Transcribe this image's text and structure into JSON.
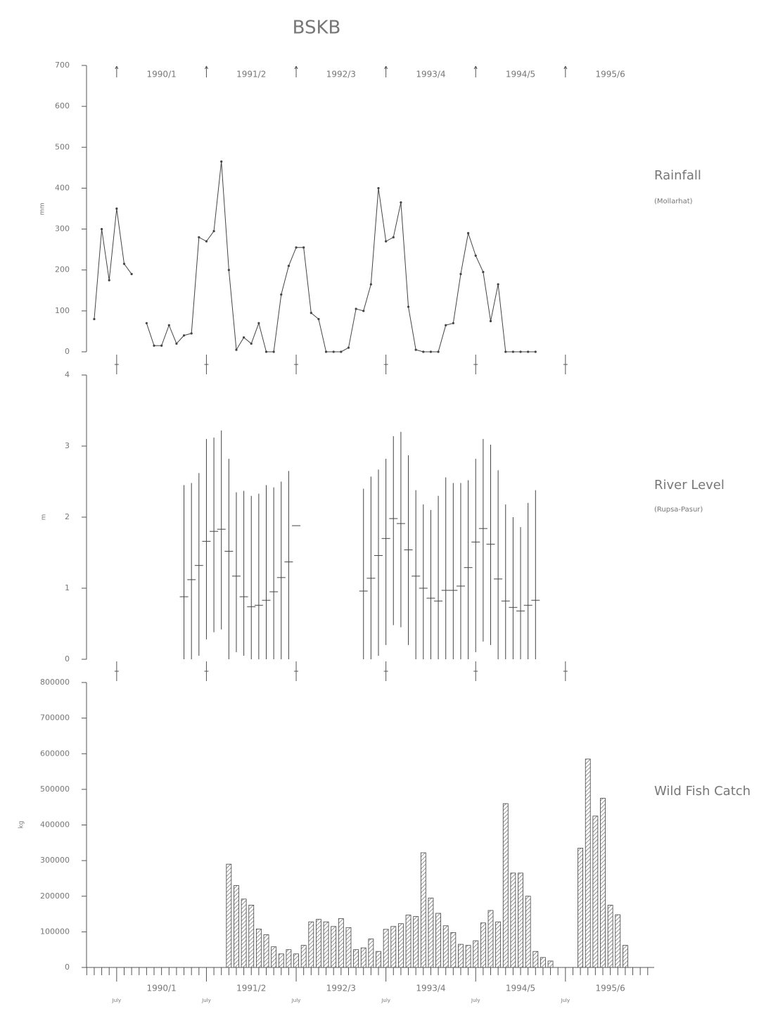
{
  "title": "BSKB",
  "chart_data": [
    {
      "type": "line",
      "label": "Rainfall",
      "sublabel": "(Mollarhat)",
      "ylabel": "mm",
      "season_labels": [
        "1990/1",
        "1991/2",
        "1992/3",
        "1993/4",
        "1994/5",
        "1995/6"
      ],
      "ylim": [
        0,
        700
      ],
      "yticks": [
        0,
        100,
        200,
        300,
        400,
        500,
        600,
        700
      ],
      "color": "#444444",
      "values": [
        null,
        80,
        300,
        175,
        350,
        215,
        190,
        null,
        70,
        15,
        15,
        65,
        20,
        40,
        45,
        280,
        270,
        295,
        465,
        200,
        5,
        35,
        20,
        70,
        0,
        0,
        140,
        210,
        255,
        255,
        95,
        80,
        0,
        0,
        0,
        10,
        105,
        100,
        165,
        400,
        270,
        280,
        365,
        110,
        5,
        0,
        0,
        0,
        65,
        70,
        190,
        290,
        235,
        195,
        75,
        165,
        0,
        0,
        0,
        0,
        0,
        null,
        null,
        null,
        null,
        null,
        null,
        null,
        null,
        null,
        null,
        null,
        null,
        null,
        null,
        null
      ]
    },
    {
      "type": "range",
      "label": "River Level",
      "sublabel": "(Rupsa-Pasur)",
      "ylabel": "m",
      "ylim": [
        0,
        4
      ],
      "yticks": [
        0,
        1,
        2,
        3,
        4
      ],
      "color": "#444444",
      "values": [
        null,
        null,
        null,
        null,
        null,
        null,
        null,
        null,
        null,
        null,
        null,
        null,
        null,
        0.88,
        1.12,
        1.32,
        1.66,
        1.8,
        1.83,
        1.52,
        1.17,
        0.88,
        0.74,
        0.76,
        0.83,
        0.95,
        1.15,
        1.37,
        1.88,
        null,
        null,
        null,
        null,
        null,
        null,
        null,
        null,
        0.96,
        1.14,
        1.46,
        1.7,
        1.98,
        1.91,
        1.54,
        1.17,
        1.0,
        0.86,
        0.82,
        0.97,
        0.97,
        1.03,
        1.29,
        1.65,
        1.84,
        1.62,
        1.13,
        0.82,
        0.73,
        0.68,
        0.76,
        0.83,
        null,
        null,
        null,
        null,
        null,
        null,
        null,
        null,
        null,
        null,
        null,
        null,
        null,
        null,
        null
      ],
      "low": [
        null,
        null,
        null,
        null,
        null,
        null,
        null,
        null,
        null,
        null,
        null,
        null,
        null,
        0,
        0,
        0.05,
        0.28,
        0.38,
        0.42,
        0,
        0.1,
        0.05,
        0,
        0,
        0,
        0,
        0,
        0,
        null,
        null,
        null,
        null,
        null,
        null,
        null,
        null,
        null,
        0,
        0,
        0.05,
        0.2,
        0.48,
        0.45,
        0.2,
        0,
        0,
        0,
        0,
        0,
        0,
        0,
        0,
        0.1,
        0.25,
        0.2,
        0,
        0,
        0,
        0,
        0,
        0,
        null,
        null,
        null,
        null,
        null,
        null,
        null,
        null,
        null,
        null,
        null,
        null,
        null,
        null,
        null
      ],
      "high": [
        null,
        null,
        null,
        null,
        null,
        null,
        null,
        null,
        null,
        null,
        null,
        null,
        null,
        2.45,
        2.48,
        2.62,
        3.1,
        3.12,
        3.22,
        2.82,
        2.35,
        2.37,
        2.3,
        2.33,
        2.45,
        2.42,
        2.5,
        2.65,
        null,
        null,
        null,
        null,
        null,
        null,
        null,
        null,
        null,
        2.4,
        2.57,
        2.67,
        2.82,
        3.14,
        3.2,
        2.87,
        2.38,
        2.18,
        2.1,
        2.3,
        2.56,
        2.48,
        2.48,
        2.52,
        2.82,
        3.1,
        3.02,
        2.66,
        2.18,
        2.0,
        1.86,
        2.2,
        2.38,
        null,
        null,
        null,
        null,
        null,
        null,
        null,
        null,
        null,
        null,
        null,
        null,
        null,
        null,
        null
      ]
    },
    {
      "type": "bar",
      "label": "Wild Fish Catch",
      "ylabel": "kg",
      "season_labels": [
        "1990/1",
        "1991/2",
        "1992/3",
        "1993/4",
        "1994/5",
        "1995/6"
      ],
      "ylim": [
        0,
        800000
      ],
      "yticks": [
        0,
        100000,
        200000,
        300000,
        400000,
        500000,
        600000,
        700000,
        800000
      ],
      "color": "#444444",
      "categories": [
        null,
        null,
        null,
        null,
        "July",
        null,
        null,
        null,
        null,
        null,
        null,
        null,
        null,
        null,
        null,
        null,
        "July",
        null,
        null,
        null,
        null,
        null,
        null,
        null,
        null,
        null,
        null,
        null,
        "July",
        null,
        null,
        null,
        null,
        null,
        null,
        null,
        null,
        null,
        null,
        null,
        "July",
        null,
        null,
        null,
        null,
        null,
        null,
        null,
        null,
        null,
        null,
        null,
        "July",
        null,
        null,
        null,
        null,
        null,
        null,
        null,
        null,
        null,
        null,
        null,
        "July",
        null,
        null,
        null,
        null,
        null,
        null,
        null,
        null,
        null,
        null,
        null
      ],
      "values": [
        null,
        null,
        null,
        null,
        null,
        null,
        null,
        null,
        null,
        null,
        null,
        null,
        null,
        null,
        null,
        null,
        null,
        null,
        null,
        290000,
        230000,
        192000,
        175000,
        108000,
        92000,
        58000,
        38000,
        50000,
        38000,
        62000,
        128000,
        135000,
        128000,
        115000,
        137000,
        112000,
        50000,
        55000,
        80000,
        45000,
        107000,
        115000,
        123000,
        147000,
        143000,
        322000,
        195000,
        152000,
        117000,
        98000,
        65000,
        62000,
        75000,
        125000,
        160000,
        128000,
        460000,
        265000,
        265000,
        200000,
        45000,
        28000,
        18000,
        null,
        null,
        null,
        335000,
        585000,
        425000,
        475000,
        175000,
        148000,
        62000,
        null,
        null,
        null
      ]
    }
  ]
}
